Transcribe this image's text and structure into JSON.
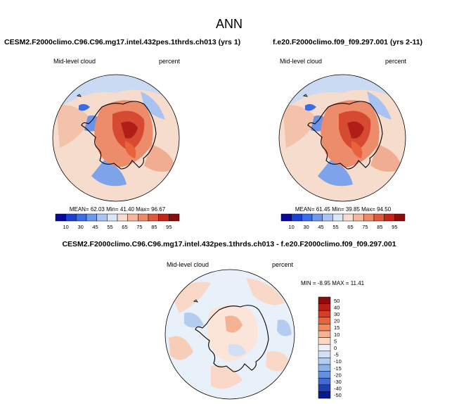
{
  "chart_data": {
    "type": "heatmap",
    "title": "ANN",
    "projection": "south polar stereographic",
    "panels": [
      {
        "id": "top-left",
        "case_title": "CESM2.F2000climo.C96.C96.mg17.intel.432pes.1thrds.ch013 (yrs 1)",
        "variable_label": "Mid-level cloud",
        "units_label": "percent",
        "stats_text": "MEAN=  62.03  Min=  41.40  Max=  96.67",
        "stats": {
          "mean": 62.03,
          "min": 41.4,
          "max": 96.67
        },
        "colorbar": {
          "levels": [
            10,
            30,
            45,
            55,
            65,
            75,
            85,
            95
          ],
          "tick_labels": [
            "10",
            "30",
            "45",
            "55",
            "65",
            "75",
            "85",
            "95"
          ]
        }
      },
      {
        "id": "top-right",
        "case_title": "f.e20.F2000climo.f09_f09.297.001 (yrs 2-11)",
        "variable_label": "Mid-level cloud",
        "units_label": "percent",
        "stats_text": "MEAN=  61.45  Min=  39.85  Max=  94.50",
        "stats": {
          "mean": 61.45,
          "min": 39.85,
          "max": 94.5
        },
        "colorbar": {
          "levels": [
            10,
            30,
            45,
            55,
            65,
            75,
            85,
            95
          ],
          "tick_labels": [
            "10",
            "30",
            "45",
            "55",
            "65",
            "75",
            "85",
            "95"
          ]
        }
      },
      {
        "id": "difference",
        "case_title": "CESM2.F2000climo.C96.C96.mg17.intel.432pes.1thrds.ch013 - f.e20.F2000climo.f09_f09.297.001",
        "variable_label": "Mid-level cloud",
        "units_label": "percent",
        "stats_text": "MIN = -8.95 MAX = 11.41",
        "stats": {
          "min": -8.95,
          "max": 11.41
        },
        "colorbar": {
          "levels": [
            50,
            40,
            30,
            20,
            15,
            10,
            5,
            0,
            -5,
            -10,
            -15,
            -20,
            -30,
            -40,
            -50
          ],
          "tick_labels": [
            "50",
            "40",
            "30",
            "20",
            "15",
            "10",
            "5",
            "0",
            "-5",
            "-10",
            "-15",
            "-20",
            "-30",
            "-40",
            "-50"
          ]
        }
      }
    ]
  },
  "colors": {
    "abs_palette": [
      "#08089a",
      "#1c3fd6",
      "#3a6ee8",
      "#6e98ee",
      "#a9c4f2",
      "#dbe6f6",
      "#f9ddd0",
      "#f6b79c",
      "#ee8a68",
      "#e05a3e",
      "#c4241c",
      "#8a0c0c"
    ],
    "diff_palette": [
      "#8a0c0c",
      "#b81d16",
      "#d83c24",
      "#e8623c",
      "#f08a60",
      "#f6b394",
      "#fad8c8",
      "#eef2f8",
      "#d2e0f6",
      "#b4ccf0",
      "#8fb0ea",
      "#6890e0",
      "#3f6ad8",
      "#1e3fb8",
      "#0a1a8a"
    ],
    "land_outline": "#000000"
  }
}
